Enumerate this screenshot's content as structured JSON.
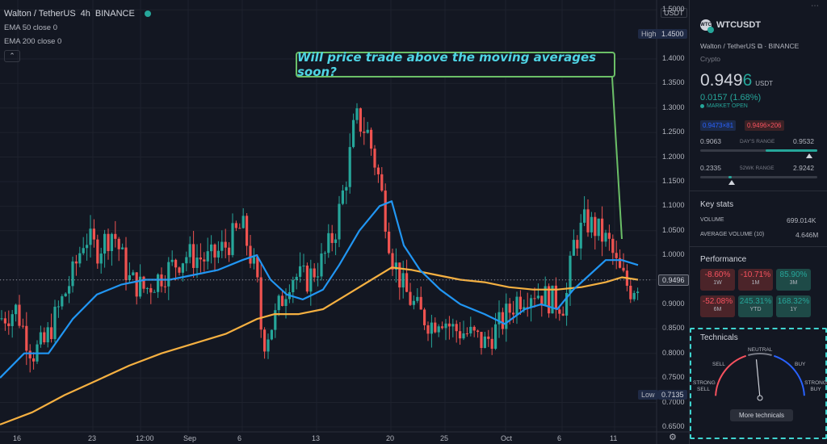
{
  "header": {
    "title": "Walton / TetherUS",
    "interval": "4h",
    "exchange": "BINANCE",
    "ema50": "EMA 50 close 0",
    "ema200": "EMA 200 close 0"
  },
  "annotation": "Will price trade above the moving averages soon?",
  "price_axis": {
    "currency": "USDT",
    "high_label": "High",
    "high_value": "1.4500",
    "low_label": "Low",
    "low_value": "0.7135",
    "current_value": "0.9496",
    "ticks": [
      "1.5000",
      "1.4000",
      "1.3500",
      "1.3000",
      "1.2500",
      "1.2000",
      "1.1500",
      "1.1000",
      "1.0500",
      "1.0000",
      "0.9500",
      "0.9000",
      "0.8500",
      "0.8000",
      "0.7500",
      "0.7000",
      "0.6500"
    ]
  },
  "time_axis": [
    "16",
    "23",
    "12:00",
    "Sep",
    "6",
    "13",
    "20",
    "25",
    "Oct",
    "6",
    "11"
  ],
  "colors": {
    "up": "#26a69a",
    "down": "#ef5350",
    "ema50": "#2196f3",
    "ema200": "#f5b041",
    "callout_border": "#6bbf67",
    "callout_text": "#4fd4e4",
    "tech_border": "#3fd5d0"
  },
  "chart_data": {
    "type": "candlestick",
    "ylim": [
      0.64,
      1.52
    ],
    "current_price": 0.9496,
    "high": 1.45,
    "low": 0.7135,
    "close_path": [
      [
        0,
        0.87
      ],
      [
        20,
        0.89
      ],
      [
        40,
        0.8
      ],
      [
        55,
        0.82
      ],
      [
        70,
        0.88
      ],
      [
        90,
        0.96
      ],
      [
        105,
        1.04
      ],
      [
        120,
        1.01
      ],
      [
        140,
        1.05
      ],
      [
        160,
        0.95
      ],
      [
        180,
        0.93
      ],
      [
        200,
        0.96
      ],
      [
        230,
        1.0
      ],
      [
        260,
        0.99
      ],
      [
        280,
        1.02
      ],
      [
        300,
        1.06
      ],
      [
        318,
        0.95
      ],
      [
        325,
        0.82
      ],
      [
        340,
        0.87
      ],
      [
        360,
        0.96
      ],
      [
        380,
        0.95
      ],
      [
        400,
        0.99
      ],
      [
        415,
        1.05
      ],
      [
        430,
        1.17
      ],
      [
        440,
        1.28
      ],
      [
        455,
        1.25
      ],
      [
        470,
        1.15
      ],
      [
        485,
        1.0
      ],
      [
        500,
        0.93
      ],
      [
        520,
        0.88
      ],
      [
        535,
        0.86
      ],
      [
        545,
        0.88
      ],
      [
        560,
        0.85
      ],
      [
        580,
        0.84
      ],
      [
        600,
        0.82
      ],
      [
        620,
        0.86
      ],
      [
        640,
        0.91
      ],
      [
        660,
        0.93
      ],
      [
        680,
        0.91
      ],
      [
        700,
        0.9
      ],
      [
        710,
        1.02
      ],
      [
        725,
        1.07
      ],
      [
        740,
        1.05
      ],
      [
        755,
        1.02
      ],
      [
        765,
        0.97
      ],
      [
        780,
        0.93
      ],
      [
        792,
        0.9496
      ]
    ],
    "ema50": [
      [
        0,
        0.75
      ],
      [
        30,
        0.8
      ],
      [
        60,
        0.8
      ],
      [
        90,
        0.87
      ],
      [
        120,
        0.92
      ],
      [
        150,
        0.94
      ],
      [
        180,
        0.95
      ],
      [
        210,
        0.95
      ],
      [
        240,
        0.96
      ],
      [
        270,
        0.97
      ],
      [
        300,
        0.99
      ],
      [
        318,
        1.0
      ],
      [
        335,
        0.95
      ],
      [
        355,
        0.92
      ],
      [
        375,
        0.91
      ],
      [
        400,
        0.93
      ],
      [
        420,
        0.98
      ],
      [
        445,
        1.05
      ],
      [
        470,
        1.1
      ],
      [
        485,
        1.11
      ],
      [
        500,
        1.02
      ],
      [
        520,
        0.97
      ],
      [
        545,
        0.93
      ],
      [
        570,
        0.9
      ],
      [
        600,
        0.88
      ],
      [
        625,
        0.86
      ],
      [
        650,
        0.89
      ],
      [
        670,
        0.9
      ],
      [
        690,
        0.89
      ],
      [
        710,
        0.93
      ],
      [
        730,
        0.96
      ],
      [
        750,
        0.99
      ],
      [
        770,
        0.99
      ],
      [
        790,
        0.98
      ]
    ],
    "ema200": [
      [
        0,
        0.655
      ],
      [
        40,
        0.68
      ],
      [
        80,
        0.715
      ],
      [
        120,
        0.745
      ],
      [
        160,
        0.775
      ],
      [
        200,
        0.8
      ],
      [
        240,
        0.82
      ],
      [
        280,
        0.84
      ],
      [
        318,
        0.87
      ],
      [
        340,
        0.88
      ],
      [
        370,
        0.88
      ],
      [
        400,
        0.89
      ],
      [
        430,
        0.92
      ],
      [
        460,
        0.95
      ],
      [
        485,
        0.975
      ],
      [
        510,
        0.97
      ],
      [
        540,
        0.96
      ],
      [
        570,
        0.95
      ],
      [
        600,
        0.945
      ],
      [
        630,
        0.935
      ],
      [
        660,
        0.93
      ],
      [
        690,
        0.93
      ],
      [
        720,
        0.935
      ],
      [
        750,
        0.945
      ],
      [
        770,
        0.955
      ],
      [
        790,
        0.95
      ]
    ]
  },
  "panel": {
    "symbol": "WTCUSDT",
    "icon_text": "WTC",
    "pair": "Walton / TetherUS",
    "exchange": "BINANCE",
    "category": "Crypto",
    "price_main": "0.949",
    "price_last": "6",
    "price_unit": "USDT",
    "change": "0.0157 (1.68%)",
    "market_status": "MARKET OPEN",
    "bid": "0.9473×81",
    "ask": "0.9496×206",
    "days_range_label": "DAY'S RANGE",
    "days_low": "0.9063",
    "days_high": "0.9532",
    "days_pos": 0.93,
    "wk52_label": "52WK RANGE",
    "wk52_low": "0.2335",
    "wk52_high": "2.9242",
    "wk52_pos": 0.27,
    "key_stats": "Key stats",
    "volume_label": "VOLUME",
    "volume": "699.014K",
    "avg_volume_label": "AVERAGE VOLUME (10)",
    "avg_volume": "4.646M",
    "performance_title": "Performance",
    "performance": [
      {
        "value": "-8.60%",
        "label": "1W",
        "dir": "neg"
      },
      {
        "value": "-10.71%",
        "label": "1M",
        "dir": "neg"
      },
      {
        "value": "85.90%",
        "label": "3M",
        "dir": "pos"
      },
      {
        "value": "-52.08%",
        "label": "6M",
        "dir": "neg"
      },
      {
        "value": "245.31%",
        "label": "YTD",
        "dir": "pos"
      },
      {
        "value": "168.32%",
        "label": "1Y",
        "dir": "pos"
      }
    ],
    "technicals": {
      "title": "Technicals",
      "strong_sell": "STRONG\nSELL",
      "sell": "SELL",
      "neutral": "NEUTRAL",
      "buy": "BUY",
      "strong_buy": "STRONG\nBUY",
      "needle_value": 0.47,
      "button": "More technicals"
    }
  }
}
